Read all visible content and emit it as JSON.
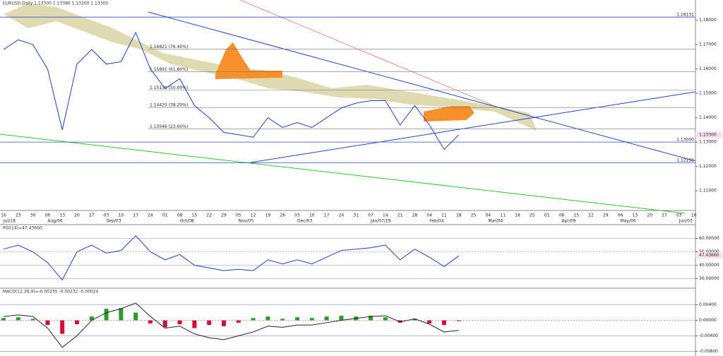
{
  "chart_data": [
    {
      "type": "line",
      "title": "EURUSD,Daily 1.13300 1.13380 1.13200 1.13300",
      "categories": [
        "16",
        "23",
        "30",
        "06",
        "13",
        "20",
        "27",
        "03",
        "10",
        "17",
        "24",
        "01",
        "08",
        "15",
        "22",
        "29",
        "05",
        "12",
        "19",
        "26",
        "03",
        "10",
        "17",
        "24",
        "31",
        "07",
        "14",
        "21",
        "28",
        "04",
        "11",
        "18",
        "25",
        "04",
        "11",
        "18",
        "25",
        "01",
        "08",
        "15",
        "22",
        "29",
        "06",
        "13",
        "20",
        "27",
        "03",
        "10"
      ],
      "month_labels": [
        "Jul/18",
        "Aug/06",
        "Sep/03",
        "Oct/08",
        "Nov/05",
        "Dec/03",
        "Jan/07/19",
        "Feb/04",
        "Mar/04",
        "Apr/09",
        "May/06",
        "Jun/03"
      ],
      "series": [
        {
          "name": "EURUSD",
          "color": "#1f3fbf",
          "values": [
            1.168,
            1.172,
            1.17,
            1.16,
            1.135,
            1.162,
            1.168,
            1.162,
            1.163,
            1.175,
            1.16,
            1.152,
            1.156,
            1.145,
            1.14,
            1.134,
            1.133,
            1.132,
            1.14,
            1.136,
            1.138,
            1.136,
            1.14,
            1.144,
            1.146,
            1.147,
            1.147,
            1.137,
            1.145,
            1.137,
            1.127,
            1.133,
            null,
            null,
            null,
            null,
            null,
            null,
            null,
            null,
            null,
            null,
            null,
            null,
            null,
            null,
            null,
            null
          ]
        }
      ],
      "ylim": [
        1.1025,
        1.186
      ],
      "yticks": [
        {
          "value": 1.11,
          "label": "1.11000"
        },
        {
          "value": 1.12,
          "label": "1.12000"
        },
        {
          "value": 1.13,
          "label": "1.13000"
        },
        {
          "value": 1.14,
          "label": "1.14000"
        },
        {
          "value": 1.15,
          "label": "1.15000"
        },
        {
          "value": 1.16,
          "label": "1.16000"
        },
        {
          "value": 1.17,
          "label": "1.17000"
        },
        {
          "value": 1.18,
          "label": "1.18000"
        }
      ],
      "levels": [
        {
          "value": 1.18131,
          "label": "1.18131"
        },
        {
          "value": 1.13,
          "label": "1.13000"
        },
        {
          "value": 1.1215,
          "label": "1.12150"
        }
      ],
      "fib": [
        {
          "value": 1.16821,
          "label": "1.16821 (76.40%)"
        },
        {
          "value": 1.15891,
          "label": "1.15891 (61.80%)"
        },
        {
          "value": 1.15139,
          "label": "1.15139 (50.00%)"
        },
        {
          "value": 1.1442,
          "label": "1.14420 (38.20%)"
        },
        {
          "value": 1.13546,
          "label": "1.13546 (23.60%)"
        }
      ],
      "current": {
        "value": 1.133,
        "label": "1.13300"
      }
    },
    {
      "type": "line",
      "title": "RSI(14)=47.43660",
      "series": [
        {
          "name": "RSI",
          "color": "#1f3fbf",
          "values": [
            52,
            55,
            50,
            42,
            29,
            50,
            55,
            49,
            51,
            62,
            50,
            44,
            48,
            40,
            38,
            36,
            37,
            36,
            44,
            41,
            44,
            41,
            46,
            51,
            52,
            53,
            55,
            44,
            52,
            46,
            39,
            47
          ]
        }
      ],
      "ylim": [
        25,
        65
      ],
      "yticks": [
        {
          "value": 30,
          "label": "30.00000"
        },
        {
          "value": 40,
          "label": "40.00000"
        },
        {
          "value": 50,
          "label": "50.00000"
        },
        {
          "value": 60,
          "label": "60.00000"
        }
      ],
      "current": {
        "value": 47.4366,
        "label": "47.43660"
      }
    },
    {
      "type": "bar",
      "title": "MACD(12,26,9)=-0.00255 -0.00232 -0.00024",
      "series": [
        {
          "name": "Histogram",
          "color": "#2a9d2a",
          "neg_color": "#d0103a",
          "values": [
            0.0006,
            0.0008,
            0.0004,
            -0.0012,
            -0.0035,
            -0.001,
            0.001,
            0.003,
            0.0032,
            0.002,
            -0.0008,
            -0.0018,
            -0.001,
            -0.002,
            -0.0012,
            -0.0015,
            -0.0006,
            0.0006,
            0.001,
            0.0004,
            0.0008,
            0.0006,
            0.001,
            0.0012,
            0.001,
            0.0012,
            0.0008,
            -0.0006,
            0.0004,
            -0.0008,
            -0.0012,
            -0.0002
          ]
        },
        {
          "name": "MACD",
          "color": "#222222",
          "values": [
            0.001,
            0.0014,
            0.001,
            -0.002,
            -0.007,
            -0.004,
            0.0,
            0.002,
            0.003,
            0.0045,
            0.001,
            -0.002,
            -0.0015,
            -0.0035,
            -0.0045,
            -0.005,
            -0.004,
            -0.003,
            -0.0015,
            -0.0018,
            -0.0012,
            -0.0012,
            -0.0006,
            0.0,
            0.0005,
            0.001,
            0.0012,
            -0.0004,
            0.0004,
            -0.001,
            -0.003,
            -0.0026
          ]
        }
      ],
      "ylim": [
        -0.0085,
        0.0065
      ],
      "yticks": [
        {
          "value": 0.004,
          "label": "0.00400"
        },
        {
          "value": 0,
          "label": "0.00000"
        },
        {
          "value": -0.004,
          "label": "-0.00400"
        },
        {
          "value": -0.008,
          "label": "-0.00800"
        }
      ]
    }
  ]
}
